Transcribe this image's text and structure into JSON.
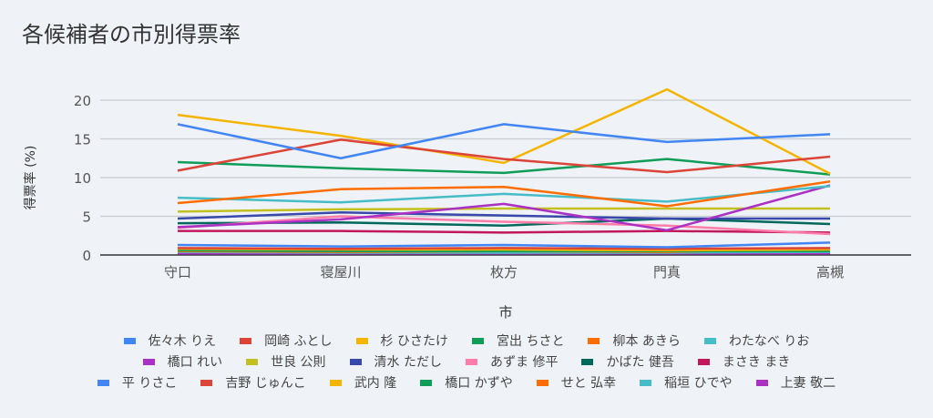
{
  "chart_data": {
    "type": "line",
    "title": "各候補者の市別得票率",
    "xlabel": "市",
    "ylabel": "得票率 (%)",
    "ylim": [
      0,
      20
    ],
    "yticks": [
      "0",
      "5",
      "10",
      "15",
      "20"
    ],
    "categories": [
      "守口",
      "寝屋川",
      "枚方",
      "門真",
      "高槻"
    ],
    "grid": true,
    "legend_position": "bottom",
    "series": [
      {
        "name": "佐々木 りえ",
        "color": "#4285f4",
        "values": [
          16.9,
          12.5,
          16.9,
          14.6,
          15.6
        ]
      },
      {
        "name": "岡崎 ふとし",
        "color": "#db4437",
        "values": [
          10.9,
          14.9,
          12.4,
          10.7,
          12.7
        ]
      },
      {
        "name": "杉 ひさたけ",
        "color": "#f4b400",
        "values": [
          18.1,
          15.4,
          11.9,
          21.4,
          10.5
        ]
      },
      {
        "name": "宮出 ちさと",
        "color": "#0f9d58",
        "values": [
          12.0,
          11.2,
          10.6,
          12.4,
          10.4
        ]
      },
      {
        "name": "柳本 あきら",
        "color": "#ff6d01",
        "values": [
          6.7,
          8.5,
          8.8,
          6.3,
          9.5
        ]
      },
      {
        "name": "わたなべ りお",
        "color": "#46bdc6",
        "values": [
          7.4,
          6.8,
          7.9,
          6.9,
          8.9
        ]
      },
      {
        "name": "橋口 れい",
        "color": "#ab30c4",
        "values": [
          3.6,
          4.6,
          6.6,
          3.2,
          9.0
        ]
      },
      {
        "name": "世良 公則",
        "color": "#c2c01f",
        "values": [
          5.6,
          5.9,
          6.0,
          6.0,
          6.0
        ]
      },
      {
        "name": "清水 ただし",
        "color": "#3949ab",
        "values": [
          4.7,
          5.5,
          5.1,
          4.7,
          4.7
        ]
      },
      {
        "name": "あずま 修平",
        "color": "#ff7ba8",
        "values": [
          3.5,
          5.0,
          4.3,
          3.8,
          2.7
        ]
      },
      {
        "name": "かばた 健吾",
        "color": "#00695c",
        "values": [
          4.1,
          4.2,
          3.8,
          4.7,
          4.0
        ]
      },
      {
        "name": "まさき まき",
        "color": "#c2185b",
        "values": [
          3.1,
          3.1,
          2.9,
          3.1,
          2.9
        ]
      },
      {
        "name": "平 りさこ",
        "color": "#4285f4",
        "values": [
          1.3,
          1.1,
          1.3,
          1.0,
          1.6
        ]
      },
      {
        "name": "吉野 じゅんこ",
        "color": "#db4437",
        "values": [
          0.9,
          0.8,
          0.9,
          0.8,
          0.9
        ]
      },
      {
        "name": "武内 隆",
        "color": "#f4b400",
        "values": [
          0.8,
          0.7,
          0.7,
          0.6,
          0.7
        ]
      },
      {
        "name": "橋口 かずや",
        "color": "#0f9d58",
        "values": [
          0.6,
          0.5,
          0.5,
          0.5,
          0.5
        ]
      },
      {
        "name": "せと 弘幸",
        "color": "#ff6d01",
        "values": [
          0.5,
          0.4,
          0.5,
          0.4,
          0.8
        ]
      },
      {
        "name": "稲垣 ひでや",
        "color": "#46bdc6",
        "values": [
          0.4,
          0.3,
          0.3,
          0.3,
          0.4
        ]
      },
      {
        "name": "上妻 敬二",
        "color": "#ab30c4",
        "values": [
          0.2,
          0.2,
          0.2,
          0.2,
          0.2
        ]
      }
    ]
  }
}
